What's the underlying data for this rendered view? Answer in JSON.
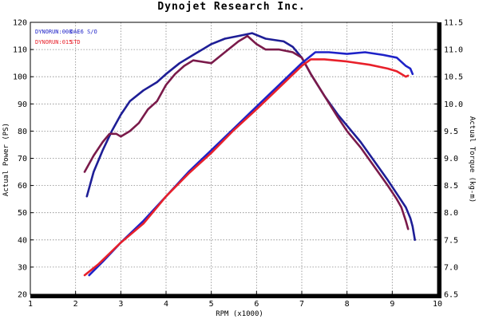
{
  "chart_data": {
    "type": "line",
    "title": "Dynojet  Research  Inc.",
    "xlabel": "RPM (x1000)",
    "ylabel_left": "Actual Power (PS)",
    "ylabel_right": "Actual Torque (kg-m)",
    "xlim": [
      1,
      10
    ],
    "ylim_left": [
      20,
      120
    ],
    "ylim_right": [
      6.5,
      11.5
    ],
    "x_ticks": [
      "1",
      "2",
      "3",
      "4",
      "5",
      "6",
      "7",
      "8",
      "9",
      "10"
    ],
    "y_ticks_left": [
      "20",
      "30",
      "40",
      "50",
      "60",
      "70",
      "80",
      "90",
      "100",
      "110",
      "120"
    ],
    "y_ticks_right": [
      "6.5",
      "7.0",
      "7.5",
      "8.0",
      "8.5",
      "9.0",
      "9.5",
      "10.0",
      "10.5",
      "11.0",
      "11.5"
    ],
    "grid": true,
    "legend_placement": "top-left",
    "legend": [
      {
        "run": "DYNORUN:008",
        "cond": "DAE6 S/O",
        "color": "#1e22c8"
      },
      {
        "run": "DYNORUN:015",
        "cond": "STD",
        "color": "#e8202a"
      }
    ],
    "series": [
      {
        "axis": "left",
        "color": "#1e1e96",
        "x": [
          2.25,
          2.4,
          2.6,
          2.8,
          3.0,
          3.2,
          3.5,
          3.8,
          4.0,
          4.3,
          4.6,
          5.0,
          5.3,
          5.6,
          5.9,
          6.2,
          6.6,
          6.8,
          7.0,
          7.2,
          7.5,
          7.8,
          8.0,
          8.3,
          8.6,
          8.9,
          9.1,
          9.3,
          9.4,
          9.45,
          9.5
        ],
        "values": [
          56,
          65,
          73,
          80,
          86,
          91,
          95,
          98,
          101,
          105,
          108,
          112,
          114,
          115,
          116,
          114,
          113,
          111,
          107,
          101,
          93,
          86,
          82,
          76,
          69,
          62,
          57,
          52,
          48,
          45,
          40
        ]
      },
      {
        "axis": "left",
        "color": "#7a1a4a",
        "x": [
          2.2,
          2.4,
          2.6,
          2.75,
          2.9,
          3.0,
          3.2,
          3.4,
          3.6,
          3.8,
          4.0,
          4.2,
          4.4,
          4.6,
          5.0,
          5.3,
          5.6,
          5.8,
          6.0,
          6.2,
          6.5,
          6.8,
          7.0,
          7.2,
          7.5,
          7.8,
          8.0,
          8.3,
          8.6,
          8.9,
          9.1,
          9.2,
          9.3,
          9.35
        ],
        "values": [
          65,
          71,
          76,
          79,
          79,
          78,
          80,
          83,
          88,
          91,
          97,
          101,
          104,
          106,
          105,
          109,
          113,
          115,
          112,
          110,
          110,
          109,
          107,
          101,
          93,
          85,
          80,
          74,
          67,
          60,
          55,
          52,
          47,
          44
        ]
      },
      {
        "axis": "right",
        "color": "#1e22c8",
        "x": [
          2.3,
          2.6,
          3.0,
          3.5,
          4.0,
          4.5,
          5.0,
          5.5,
          6.0,
          6.5,
          7.0,
          7.3,
          7.6,
          8.0,
          8.4,
          8.8,
          9.1,
          9.3,
          9.4,
          9.45
        ],
        "values": [
          6.85,
          7.1,
          7.45,
          7.85,
          8.3,
          8.75,
          9.15,
          9.55,
          9.95,
          10.35,
          10.75,
          10.95,
          10.95,
          10.92,
          10.95,
          10.9,
          10.85,
          10.7,
          10.65,
          10.55
        ]
      },
      {
        "axis": "right",
        "color": "#e8202a",
        "x": [
          2.2,
          2.5,
          3.0,
          3.5,
          4.0,
          4.5,
          5.0,
          5.5,
          6.0,
          6.5,
          7.0,
          7.2,
          7.5,
          8.0,
          8.5,
          8.9,
          9.1,
          9.2,
          9.3,
          9.35
        ],
        "values": [
          6.85,
          7.05,
          7.45,
          7.8,
          8.3,
          8.72,
          9.1,
          9.52,
          9.9,
          10.3,
          10.7,
          10.82,
          10.82,
          10.78,
          10.72,
          10.65,
          10.6,
          10.55,
          10.5,
          10.52
        ]
      }
    ]
  }
}
